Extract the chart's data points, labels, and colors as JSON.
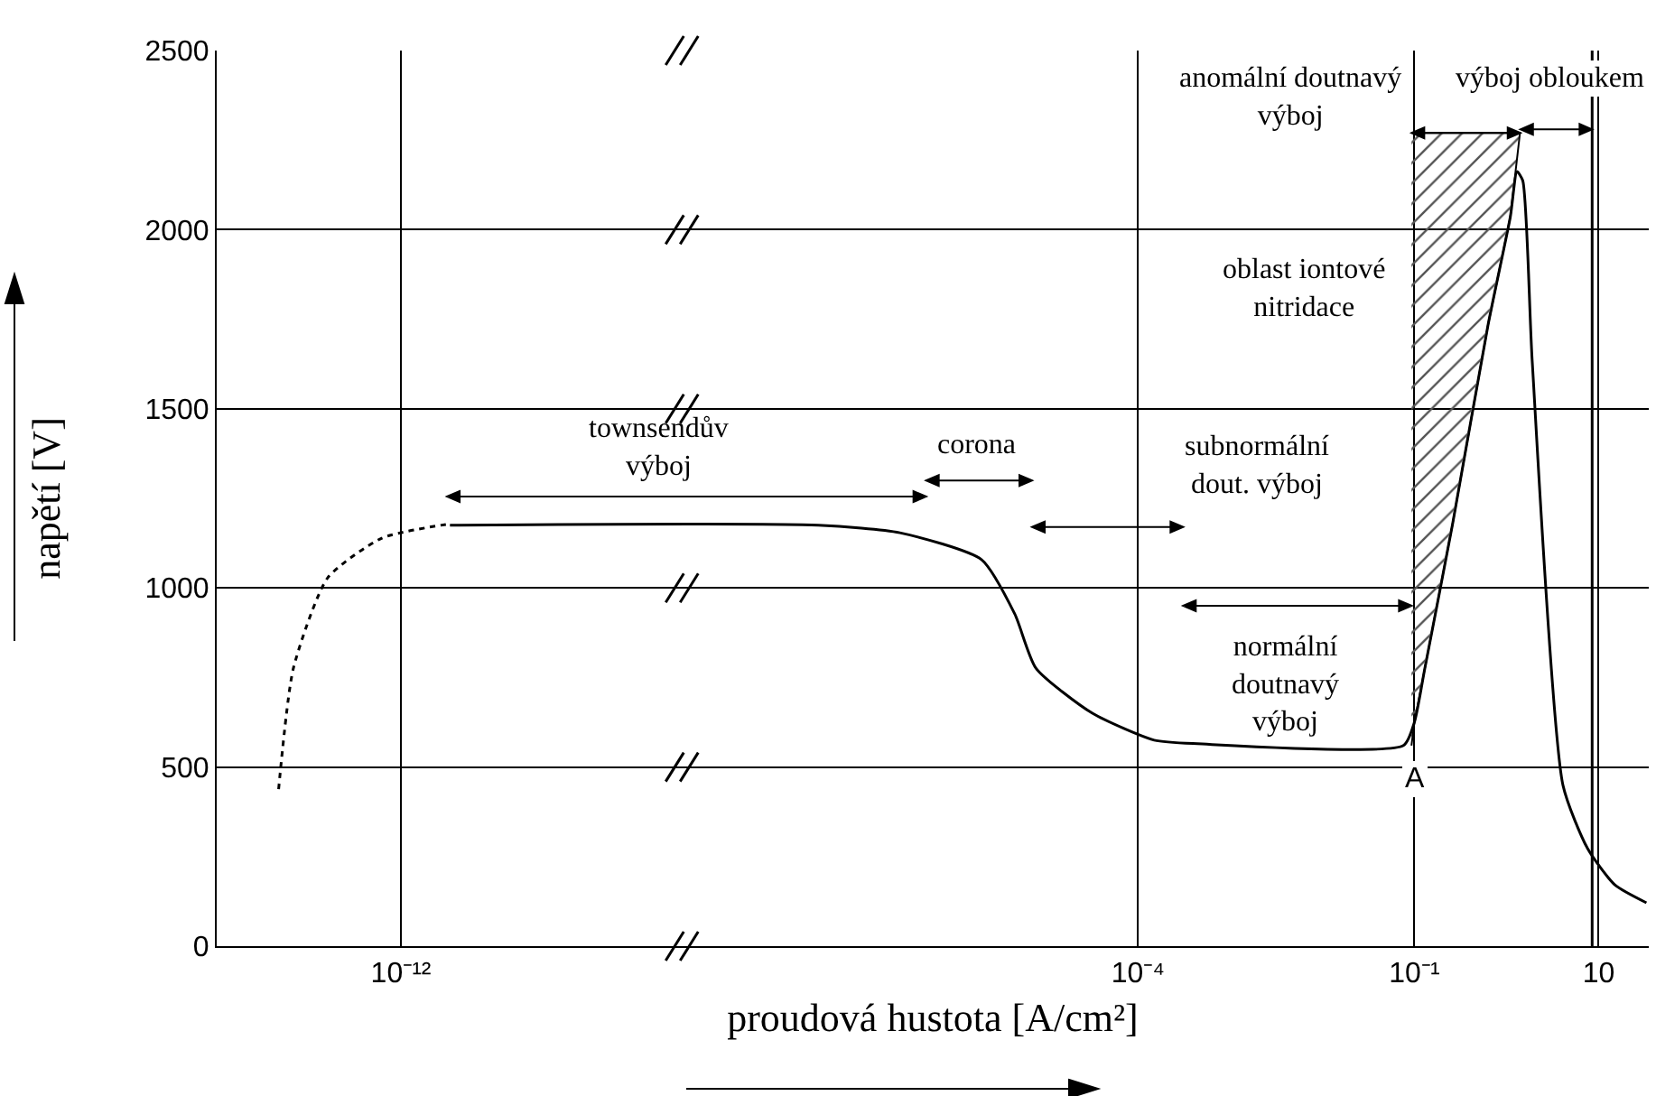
{
  "chart_data": {
    "type": "line",
    "xlabel": "proudová hustota [A/cm²]",
    "ylabel": "napětí [V]",
    "log": "x",
    "xlim": [
      1e-14,
      35
    ],
    "xticks": [
      {
        "value": 1e-12,
        "label": "10⁻¹²"
      },
      {
        "value": 0.0001,
        "label": "10⁻⁴"
      },
      {
        "value": 0.1,
        "label": "10⁻¹"
      },
      10
    ],
    "ylim": [
      0,
      2500
    ],
    "yticks": [
      0,
      500,
      1000,
      1500,
      2000,
      2500
    ],
    "grid": true,
    "marker": "none",
    "series": [
      {
        "color": "#000000",
        "line_style": "dotted",
        "x": [
          4.7e-14,
          6.8e-14,
          1.6e-13,
          6.2e-13,
          3.4e-12
        ],
        "values": [
          438,
          776,
          1028,
          1139,
          1179
        ]
      },
      {
        "color": "#000000",
        "line_style": "solid",
        "x": [
          3.4e-12,
          3.4e-08,
          2.6e-07,
          2e-06,
          4.6e-06,
          7.8e-06,
          3.2e-05,
          0.00015,
          0.00044,
          0.076,
          0.1,
          0.13,
          0.26,
          0.63,
          1.1,
          1.3,
          1.5,
          1.9,
          4.1,
          7.6,
          15,
          33
        ],
        "values": [
          1175,
          1175,
          1154,
          1079,
          927,
          776,
          650,
          575,
          565,
          560,
          625,
          776,
          1179,
          1734,
          2036,
          2162,
          2137,
          1633,
          449,
          272,
          171,
          121
        ]
      },
      {
        "type": "area",
        "color": "#555555",
        "x": [
          0.093,
          1.4,
          1.1,
          0.63,
          0.26,
          0.13,
          0.1,
          0.093
        ],
        "values": [
          2270,
          2270,
          2036,
          1734,
          1179,
          776,
          625,
          560
        ]
      }
    ],
    "ref_lines": [
      {
        "axis": "x",
        "value": 8.5,
        "label": null,
        "color": "#000000",
        "line_style": "solid"
      }
    ],
    "annotations": [
      "townsendův\nvýboj",
      "corona",
      "subnormální\ndout. výboj",
      "normální\ndoutnavý\nvýboj",
      "anomální doutnavý\nvýboj",
      "oblast iontové\nnitridace",
      "výboj obloukem",
      "A"
    ]
  }
}
